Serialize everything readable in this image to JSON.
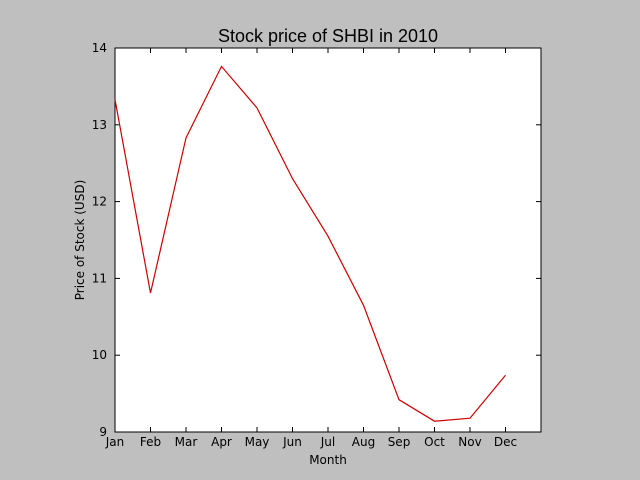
{
  "chart_data": {
    "type": "line",
    "title": "Stock price of SHBI in 2010",
    "xlabel": "Month",
    "ylabel": "Price of Stock (USD)",
    "categories": [
      "Jan",
      "Feb",
      "Mar",
      "Apr",
      "May",
      "Jun",
      "Jul",
      "Aug",
      "Sep",
      "Oct",
      "Nov",
      "Dec"
    ],
    "series": [
      {
        "values": [
          13.33,
          10.81,
          12.83,
          13.76,
          13.22,
          12.3,
          11.55,
          10.65,
          9.42,
          9.14,
          9.18,
          9.74
        ],
        "color": "#cc0000"
      }
    ],
    "xlim": [
      0,
      12
    ],
    "ylim": [
      9,
      14
    ],
    "yticks": [
      9,
      10,
      11,
      12,
      13,
      14
    ],
    "grid": false,
    "legend": "none"
  }
}
